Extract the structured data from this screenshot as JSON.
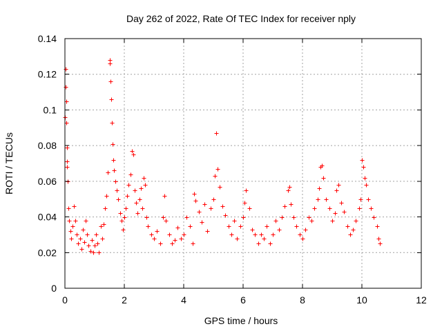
{
  "chart_data": {
    "type": "scatter",
    "title": "Day 262 of 2022, Rate Of TEC Index for receiver nply",
    "xlabel": "GPS time / hours",
    "ylabel": "ROTI / TECUs",
    "xlim": [
      0,
      12
    ],
    "ylim": [
      0,
      0.14
    ],
    "xticks": [
      "0",
      "2",
      "4",
      "6",
      "8",
      "10",
      "12"
    ],
    "yticks": [
      "0",
      "0.02",
      "0.04",
      "0.06",
      "0.08",
      "0.1",
      "0.12",
      "0.14"
    ],
    "grid": true,
    "marker": "plus",
    "color": "#ff0000",
    "series": [
      {
        "x": [
          0.0,
          0.02,
          0.03,
          0.04,
          0.05,
          0.06,
          0.07,
          0.08,
          0.1,
          0.12,
          0.14,
          0.18,
          0.22,
          0.25,
          0.3,
          0.35,
          0.4,
          0.45,
          0.5,
          0.55,
          0.6,
          0.65,
          0.7,
          0.75,
          0.8,
          0.85,
          0.9,
          0.95,
          1.0,
          1.05,
          1.1,
          1.15,
          1.2,
          1.25,
          1.3,
          1.35,
          1.4,
          1.45,
          1.5,
          1.52,
          1.54,
          1.56,
          1.58,
          1.6,
          1.62,
          1.65,
          1.7,
          1.75,
          1.8,
          1.85,
          1.9,
          1.95,
          2.0,
          2.05,
          2.1,
          2.15,
          2.2,
          2.25,
          2.3,
          2.35,
          2.4,
          2.45,
          2.5,
          2.55,
          2.6,
          2.65,
          2.7,
          2.75,
          2.8,
          2.9,
          3.0,
          3.1,
          3.2,
          3.3,
          3.35,
          3.4,
          3.5,
          3.6,
          3.7,
          3.8,
          3.9,
          4.0,
          4.1,
          4.2,
          4.3,
          4.35,
          4.4,
          4.5,
          4.6,
          4.7,
          4.8,
          4.9,
          5.0,
          5.05,
          5.1,
          5.15,
          5.2,
          5.3,
          5.4,
          5.5,
          5.6,
          5.7,
          5.8,
          5.9,
          6.0,
          6.05,
          6.1,
          6.2,
          6.3,
          6.4,
          6.5,
          6.6,
          6.7,
          6.8,
          6.9,
          7.0,
          7.1,
          7.2,
          7.3,
          7.4,
          7.5,
          7.55,
          7.6,
          7.7,
          7.8,
          7.9,
          8.0,
          8.1,
          8.2,
          8.3,
          8.4,
          8.5,
          8.55,
          8.6,
          8.65,
          8.7,
          8.8,
          8.9,
          9.0,
          9.1,
          9.15,
          9.2,
          9.3,
          9.4,
          9.5,
          9.6,
          9.7,
          9.8,
          9.9,
          9.95,
          10.0,
          10.05,
          10.1,
          10.15,
          10.2,
          10.3,
          10.4,
          10.5,
          10.55,
          10.6
        ],
        "y": [
          0.096,
          0.123,
          0.113,
          0.105,
          0.093,
          0.079,
          0.071,
          0.068,
          0.06,
          0.045,
          0.038,
          0.032,
          0.028,
          0.035,
          0.046,
          0.038,
          0.03,
          0.025,
          0.028,
          0.022,
          0.033,
          0.026,
          0.038,
          0.03,
          0.024,
          0.021,
          0.027,
          0.02,
          0.024,
          0.03,
          0.025,
          0.02,
          0.035,
          0.028,
          0.036,
          0.045,
          0.052,
          0.065,
          0.128,
          0.126,
          0.116,
          0.106,
          0.093,
          0.081,
          0.072,
          0.066,
          0.06,
          0.055,
          0.05,
          0.042,
          0.038,
          0.033,
          0.04,
          0.045,
          0.052,
          0.058,
          0.064,
          0.077,
          0.075,
          0.055,
          0.048,
          0.042,
          0.05,
          0.056,
          0.045,
          0.062,
          0.058,
          0.04,
          0.035,
          0.03,
          0.028,
          0.032,
          0.025,
          0.04,
          0.052,
          0.038,
          0.03,
          0.025,
          0.027,
          0.034,
          0.028,
          0.03,
          0.04,
          0.035,
          0.025,
          0.053,
          0.049,
          0.043,
          0.037,
          0.047,
          0.032,
          0.045,
          0.05,
          0.063,
          0.087,
          0.067,
          0.057,
          0.046,
          0.041,
          0.035,
          0.03,
          0.038,
          0.028,
          0.035,
          0.04,
          0.048,
          0.055,
          0.045,
          0.033,
          0.03,
          0.025,
          0.03,
          0.028,
          0.035,
          0.025,
          0.03,
          0.038,
          0.033,
          0.04,
          0.046,
          0.055,
          0.057,
          0.047,
          0.04,
          0.035,
          0.03,
          0.028,
          0.033,
          0.04,
          0.038,
          0.045,
          0.05,
          0.056,
          0.068,
          0.069,
          0.062,
          0.05,
          0.045,
          0.038,
          0.042,
          0.055,
          0.058,
          0.048,
          0.043,
          0.035,
          0.03,
          0.033,
          0.038,
          0.045,
          0.05,
          0.072,
          0.068,
          0.062,
          0.058,
          0.05,
          0.045,
          0.04,
          0.035,
          0.028,
          0.025
        ]
      }
    ]
  }
}
